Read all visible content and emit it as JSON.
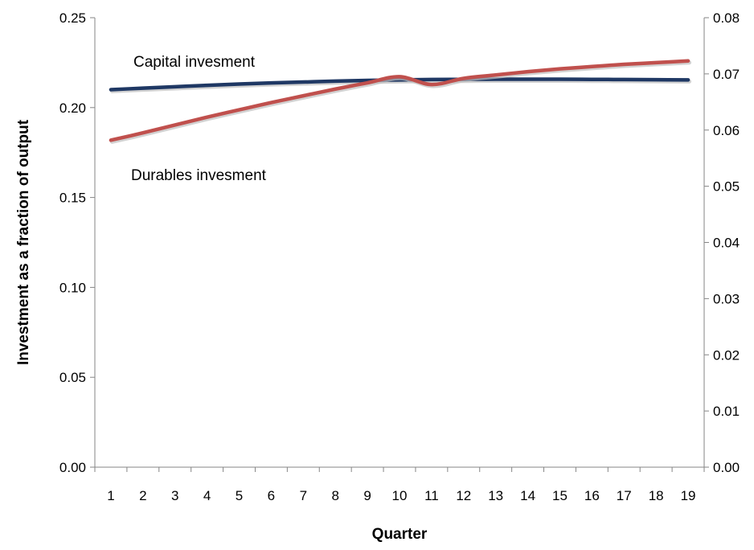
{
  "chart_data": {
    "type": "line",
    "title": "",
    "xlabel": "Quarter",
    "ylabel": "Investment as a fraction of output",
    "y2label": "",
    "x": [
      1,
      2,
      3,
      4,
      5,
      6,
      7,
      8,
      9,
      10,
      11,
      12,
      13,
      14,
      15,
      16,
      17,
      18,
      19
    ],
    "ylim": [
      0,
      0.25
    ],
    "y2lim": [
      0,
      0.08
    ],
    "yticks": [
      "0.00",
      "0.05",
      "0.10",
      "0.15",
      "0.20",
      "0.25"
    ],
    "y2ticks": [
      "0.00",
      "0.01",
      "0.02",
      "0.03",
      "0.04",
      "0.05",
      "0.06",
      "0.07",
      "0.08"
    ],
    "grid": false,
    "legend": "none",
    "series": [
      {
        "name": "Capital invesment",
        "axis": "left",
        "color": "#1f3864",
        "values": [
          0.21,
          0.2108,
          0.2116,
          0.2124,
          0.2131,
          0.2137,
          0.2142,
          0.2147,
          0.2151,
          0.2154,
          0.2156,
          0.2157,
          0.2158,
          0.2158,
          0.2158,
          0.2157,
          0.2156,
          0.2155,
          0.2154
        ]
      },
      {
        "name": "Durables invesment",
        "axis": "right",
        "color": "#c0504d",
        "values": [
          0.0582,
          0.0595,
          0.0609,
          0.0623,
          0.0636,
          0.0649,
          0.0661,
          0.0673,
          0.0684,
          0.0695,
          0.0681,
          0.0692,
          0.0698,
          0.0704,
          0.0709,
          0.0713,
          0.0717,
          0.072,
          0.0723
        ]
      }
    ],
    "annotations": [
      {
        "text": "Capital invesment",
        "series": "Capital invesment"
      },
      {
        "text": "Durables invesment",
        "series": "Durables invesment"
      }
    ]
  }
}
